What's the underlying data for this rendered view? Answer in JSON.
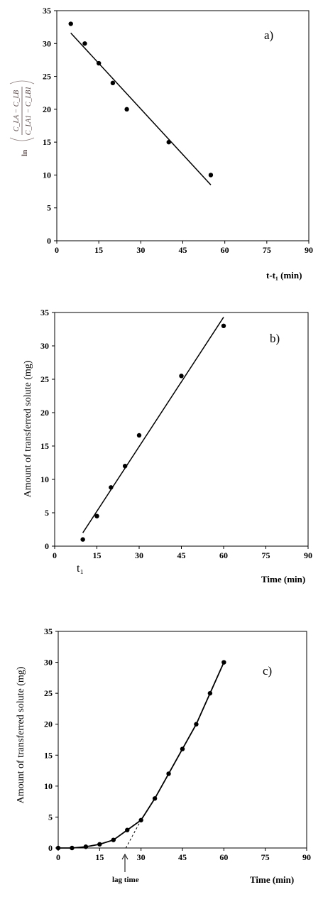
{
  "chart_data": [
    {
      "type": "scatter",
      "panel_label": "a)",
      "xlabel": "t-t₁ (min)",
      "ylabel": {
        "prefix": "ln",
        "numerator": "C_LA − C_LB",
        "denominator": "C_LA1 − C_LB1"
      },
      "xlim": [
        0,
        90
      ],
      "ylim": [
        0,
        35
      ],
      "xticks": [
        "0",
        "15",
        "30",
        "45",
        "60",
        "75",
        "90"
      ],
      "yticks": [
        "0",
        "5",
        "10",
        "15",
        "20",
        "25",
        "30",
        "35"
      ],
      "grid": false,
      "series": [
        {
          "x": [
            5,
            10,
            15,
            20,
            25,
            40,
            55
          ],
          "y": [
            33,
            30,
            27,
            24,
            20,
            15,
            10
          ]
        }
      ],
      "fit_line": {
        "x": [
          5,
          55
        ],
        "y": [
          31.6,
          8.5
        ]
      }
    },
    {
      "type": "scatter",
      "panel_label": "b)",
      "xlabel": "Time (min)",
      "ylabel": "Amount of transferred solute (mg)",
      "xlim": [
        0,
        90
      ],
      "ylim": [
        0,
        35
      ],
      "xticks": [
        "0",
        "15",
        "30",
        "45",
        "60",
        "75",
        "90"
      ],
      "yticks": [
        "0",
        "5",
        "10",
        "15",
        "20",
        "25",
        "30",
        "35"
      ],
      "grid": false,
      "annotation": "t₁",
      "series": [
        {
          "x": [
            10,
            15,
            20,
            25,
            30,
            45,
            60
          ],
          "y": [
            1,
            4.5,
            8.8,
            12,
            16.6,
            25.5,
            33
          ]
        }
      ],
      "fit_line": {
        "x": [
          10,
          60
        ],
        "y": [
          2,
          34.3
        ]
      }
    },
    {
      "type": "line",
      "panel_label": "c)",
      "xlabel": "Time (min)",
      "ylabel": "Amount of transferred solute (mg)",
      "xlim": [
        0,
        90
      ],
      "ylim": [
        0,
        35
      ],
      "xticks": [
        "0",
        "15",
        "30",
        "45",
        "60",
        "75",
        "90"
      ],
      "yticks": [
        "0",
        "5",
        "10",
        "15",
        "20",
        "25",
        "30",
        "35"
      ],
      "grid": false,
      "annotation": "lag time",
      "lag_time_x": 24.5,
      "series": [
        {
          "x": [
            0,
            5,
            10,
            15,
            20,
            25,
            30,
            35,
            40,
            45,
            50,
            55,
            60
          ],
          "y": [
            0,
            0,
            0.2,
            0.6,
            1.3,
            2.9,
            4.5,
            8,
            12,
            16,
            20,
            25,
            30
          ]
        }
      ],
      "dashed_extrapolation": {
        "x": [
          24.5,
          30
        ],
        "y": [
          0,
          4.5
        ]
      }
    }
  ]
}
